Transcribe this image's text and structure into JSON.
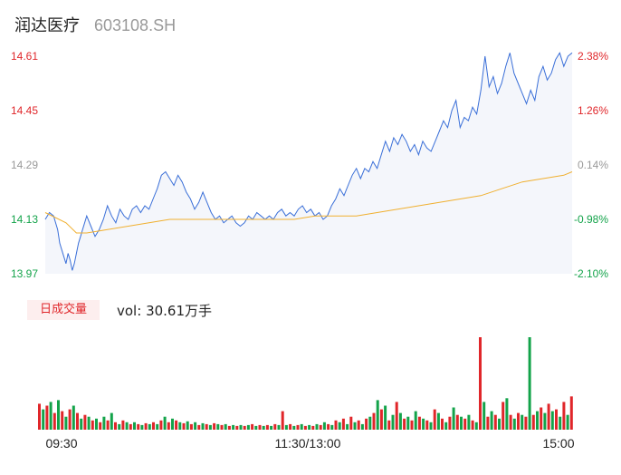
{
  "header": {
    "name": "润达医疗",
    "code": "603108.SH"
  },
  "volume": {
    "badge": "日成交量",
    "label": "vol:",
    "value": "30.61万手"
  },
  "colors": {
    "price": "#3a6fd8",
    "avg": "#f0b030",
    "up": "#e0262a",
    "down": "#13a34a",
    "fill": "#f4f6fb",
    "neutral": "#999999"
  },
  "chart_data": {
    "type": "line",
    "y_left_ticks": [
      "14.61",
      "14.45",
      "14.29",
      "14.13",
      "13.97"
    ],
    "y_right_ticks": [
      "2.38%",
      "1.26%",
      "0.14%",
      "-0.98%",
      "-2.10%"
    ],
    "ylim": [
      13.97,
      14.61
    ],
    "x_ticks": [
      "09:30",
      "11:30/13:00",
      "15:00"
    ],
    "price_series": [
      [
        0,
        14.13
      ],
      [
        2,
        14.15
      ],
      [
        4,
        14.14
      ],
      [
        6,
        14.1
      ],
      [
        7,
        14.06
      ],
      [
        9,
        14.02
      ],
      [
        10,
        14.0
      ],
      [
        11,
        14.03
      ],
      [
        12,
        14.01
      ],
      [
        13,
        13.98
      ],
      [
        14,
        14.0
      ],
      [
        15,
        14.03
      ],
      [
        16,
        14.06
      ],
      [
        17,
        14.08
      ],
      [
        18,
        14.1
      ],
      [
        19,
        14.12
      ],
      [
        20,
        14.14
      ],
      [
        22,
        14.11
      ],
      [
        24,
        14.08
      ],
      [
        26,
        14.1
      ],
      [
        28,
        14.13
      ],
      [
        30,
        14.17
      ],
      [
        32,
        14.14
      ],
      [
        34,
        14.12
      ],
      [
        36,
        14.16
      ],
      [
        38,
        14.14
      ],
      [
        40,
        14.13
      ],
      [
        42,
        14.16
      ],
      [
        44,
        14.17
      ],
      [
        46,
        14.15
      ],
      [
        48,
        14.17
      ],
      [
        50,
        14.16
      ],
      [
        52,
        14.19
      ],
      [
        54,
        14.22
      ],
      [
        56,
        14.26
      ],
      [
        58,
        14.27
      ],
      [
        60,
        14.25
      ],
      [
        62,
        14.23
      ],
      [
        64,
        14.26
      ],
      [
        66,
        14.24
      ],
      [
        68,
        14.21
      ],
      [
        70,
        14.19
      ],
      [
        72,
        14.16
      ],
      [
        74,
        14.18
      ],
      [
        76,
        14.21
      ],
      [
        78,
        14.18
      ],
      [
        80,
        14.15
      ],
      [
        82,
        14.13
      ],
      [
        84,
        14.14
      ],
      [
        86,
        14.12
      ],
      [
        88,
        14.13
      ],
      [
        90,
        14.14
      ],
      [
        92,
        14.12
      ],
      [
        94,
        14.11
      ],
      [
        96,
        14.12
      ],
      [
        98,
        14.14
      ],
      [
        100,
        14.13
      ],
      [
        102,
        14.15
      ],
      [
        104,
        14.14
      ],
      [
        106,
        14.13
      ],
      [
        108,
        14.14
      ],
      [
        110,
        14.13
      ],
      [
        112,
        14.15
      ],
      [
        114,
        14.16
      ],
      [
        116,
        14.14
      ],
      [
        118,
        14.15
      ],
      [
        120,
        14.14
      ],
      [
        122,
        14.16
      ],
      [
        124,
        14.17
      ],
      [
        126,
        14.15
      ],
      [
        128,
        14.16
      ],
      [
        130,
        14.14
      ],
      [
        132,
        14.15
      ],
      [
        134,
        14.13
      ],
      [
        136,
        14.14
      ],
      [
        138,
        14.17
      ],
      [
        140,
        14.19
      ],
      [
        142,
        14.22
      ],
      [
        144,
        14.2
      ],
      [
        146,
        14.23
      ],
      [
        148,
        14.26
      ],
      [
        150,
        14.28
      ],
      [
        152,
        14.25
      ],
      [
        154,
        14.28
      ],
      [
        156,
        14.27
      ],
      [
        158,
        14.3
      ],
      [
        160,
        14.28
      ],
      [
        162,
        14.32
      ],
      [
        164,
        14.36
      ],
      [
        166,
        14.33
      ],
      [
        168,
        14.37
      ],
      [
        170,
        14.35
      ],
      [
        172,
        14.38
      ],
      [
        174,
        14.36
      ],
      [
        176,
        14.33
      ],
      [
        178,
        14.35
      ],
      [
        180,
        14.32
      ],
      [
        182,
        14.36
      ],
      [
        184,
        14.34
      ],
      [
        186,
        14.33
      ],
      [
        188,
        14.36
      ],
      [
        190,
        14.39
      ],
      [
        192,
        14.42
      ],
      [
        194,
        14.4
      ],
      [
        196,
        14.45
      ],
      [
        198,
        14.48
      ],
      [
        200,
        14.4
      ],
      [
        202,
        14.43
      ],
      [
        204,
        14.42
      ],
      [
        206,
        14.46
      ],
      [
        208,
        14.44
      ],
      [
        210,
        14.51
      ],
      [
        212,
        14.61
      ],
      [
        214,
        14.52
      ],
      [
        216,
        14.55
      ],
      [
        218,
        14.5
      ],
      [
        220,
        14.53
      ],
      [
        222,
        14.58
      ],
      [
        224,
        14.62
      ],
      [
        226,
        14.56
      ],
      [
        228,
        14.53
      ],
      [
        230,
        14.5
      ],
      [
        232,
        14.47
      ],
      [
        234,
        14.51
      ],
      [
        236,
        14.48
      ],
      [
        238,
        14.55
      ],
      [
        240,
        14.58
      ],
      [
        242,
        14.54
      ],
      [
        244,
        14.56
      ],
      [
        246,
        14.6
      ],
      [
        248,
        14.62
      ],
      [
        250,
        14.58
      ],
      [
        252,
        14.61
      ],
      [
        254,
        14.62
      ]
    ],
    "avg_series": [
      [
        0,
        14.15
      ],
      [
        10,
        14.12
      ],
      [
        15,
        14.09
      ],
      [
        20,
        14.09
      ],
      [
        30,
        14.1
      ],
      [
        40,
        14.11
      ],
      [
        50,
        14.12
      ],
      [
        60,
        14.13
      ],
      [
        70,
        14.13
      ],
      [
        80,
        14.13
      ],
      [
        90,
        14.13
      ],
      [
        100,
        14.13
      ],
      [
        110,
        14.13
      ],
      [
        120,
        14.13
      ],
      [
        130,
        14.14
      ],
      [
        140,
        14.14
      ],
      [
        150,
        14.14
      ],
      [
        160,
        14.15
      ],
      [
        170,
        14.16
      ],
      [
        180,
        14.17
      ],
      [
        190,
        14.18
      ],
      [
        200,
        14.19
      ],
      [
        210,
        14.2
      ],
      [
        220,
        14.22
      ],
      [
        230,
        14.24
      ],
      [
        240,
        14.25
      ],
      [
        250,
        14.26
      ],
      [
        254,
        14.27
      ]
    ],
    "volume_bars": [
      [
        0,
        28,
        "up"
      ],
      [
        1,
        22,
        "down"
      ],
      [
        2,
        26,
        "up"
      ],
      [
        3,
        30,
        "down"
      ],
      [
        4,
        18,
        "up"
      ],
      [
        5,
        32,
        "down"
      ],
      [
        6,
        20,
        "up"
      ],
      [
        7,
        14,
        "down"
      ],
      [
        8,
        22,
        "up"
      ],
      [
        9,
        26,
        "down"
      ],
      [
        10,
        18,
        "up"
      ],
      [
        11,
        12,
        "down"
      ],
      [
        12,
        16,
        "up"
      ],
      [
        13,
        14,
        "down"
      ],
      [
        14,
        10,
        "up"
      ],
      [
        15,
        12,
        "down"
      ],
      [
        16,
        8,
        "up"
      ],
      [
        17,
        14,
        "down"
      ],
      [
        18,
        10,
        "up"
      ],
      [
        19,
        18,
        "down"
      ],
      [
        20,
        8,
        "up"
      ],
      [
        21,
        6,
        "down"
      ],
      [
        22,
        10,
        "up"
      ],
      [
        23,
        8,
        "down"
      ],
      [
        24,
        6,
        "up"
      ],
      [
        25,
        8,
        "down"
      ],
      [
        26,
        6,
        "up"
      ],
      [
        27,
        5,
        "down"
      ],
      [
        28,
        7,
        "up"
      ],
      [
        29,
        6,
        "down"
      ],
      [
        30,
        8,
        "up"
      ],
      [
        31,
        6,
        "down"
      ],
      [
        32,
        10,
        "up"
      ],
      [
        33,
        14,
        "down"
      ],
      [
        34,
        8,
        "up"
      ],
      [
        35,
        12,
        "down"
      ],
      [
        36,
        10,
        "up"
      ],
      [
        37,
        8,
        "down"
      ],
      [
        38,
        7,
        "up"
      ],
      [
        39,
        9,
        "down"
      ],
      [
        40,
        6,
        "up"
      ],
      [
        41,
        8,
        "down"
      ],
      [
        42,
        5,
        "up"
      ],
      [
        43,
        7,
        "down"
      ],
      [
        44,
        6,
        "up"
      ],
      [
        45,
        5,
        "down"
      ],
      [
        46,
        7,
        "up"
      ],
      [
        47,
        6,
        "down"
      ],
      [
        48,
        5,
        "up"
      ],
      [
        49,
        6,
        "down"
      ],
      [
        50,
        4,
        "up"
      ],
      [
        51,
        5,
        "down"
      ],
      [
        52,
        4,
        "up"
      ],
      [
        53,
        5,
        "down"
      ],
      [
        54,
        4,
        "up"
      ],
      [
        55,
        5,
        "down"
      ],
      [
        56,
        6,
        "up"
      ],
      [
        57,
        4,
        "down"
      ],
      [
        58,
        5,
        "up"
      ],
      [
        59,
        4,
        "down"
      ],
      [
        60,
        5,
        "up"
      ],
      [
        61,
        4,
        "down"
      ],
      [
        62,
        6,
        "up"
      ],
      [
        63,
        5,
        "down"
      ],
      [
        64,
        20,
        "up"
      ],
      [
        65,
        5,
        "down"
      ],
      [
        66,
        6,
        "up"
      ],
      [
        67,
        4,
        "down"
      ],
      [
        68,
        5,
        "up"
      ],
      [
        69,
        6,
        "down"
      ],
      [
        70,
        4,
        "up"
      ],
      [
        71,
        5,
        "down"
      ],
      [
        72,
        4,
        "up"
      ],
      [
        73,
        6,
        "down"
      ],
      [
        74,
        5,
        "up"
      ],
      [
        75,
        8,
        "down"
      ],
      [
        76,
        6,
        "up"
      ],
      [
        77,
        5,
        "down"
      ],
      [
        78,
        10,
        "up"
      ],
      [
        79,
        8,
        "down"
      ],
      [
        80,
        12,
        "up"
      ],
      [
        81,
        6,
        "down"
      ],
      [
        82,
        14,
        "up"
      ],
      [
        83,
        8,
        "down"
      ],
      [
        84,
        10,
        "up"
      ],
      [
        85,
        6,
        "down"
      ],
      [
        86,
        12,
        "up"
      ],
      [
        87,
        14,
        "down"
      ],
      [
        88,
        18,
        "up"
      ],
      [
        89,
        32,
        "down"
      ],
      [
        90,
        22,
        "up"
      ],
      [
        91,
        26,
        "down"
      ],
      [
        92,
        10,
        "up"
      ],
      [
        93,
        16,
        "down"
      ],
      [
        94,
        30,
        "up"
      ],
      [
        95,
        18,
        "down"
      ],
      [
        96,
        12,
        "up"
      ],
      [
        97,
        14,
        "down"
      ],
      [
        98,
        10,
        "up"
      ],
      [
        99,
        20,
        "down"
      ],
      [
        100,
        14,
        "up"
      ],
      [
        101,
        12,
        "down"
      ],
      [
        102,
        10,
        "up"
      ],
      [
        103,
        8,
        "down"
      ],
      [
        104,
        22,
        "up"
      ],
      [
        105,
        18,
        "down"
      ],
      [
        106,
        12,
        "up"
      ],
      [
        107,
        8,
        "down"
      ],
      [
        108,
        14,
        "up"
      ],
      [
        109,
        24,
        "down"
      ],
      [
        110,
        16,
        "up"
      ],
      [
        111,
        14,
        "down"
      ],
      [
        112,
        12,
        "up"
      ],
      [
        113,
        16,
        "down"
      ],
      [
        114,
        10,
        "up"
      ],
      [
        115,
        8,
        "down"
      ],
      [
        116,
        100,
        "up"
      ],
      [
        117,
        30,
        "down"
      ],
      [
        118,
        14,
        "up"
      ],
      [
        119,
        20,
        "down"
      ],
      [
        120,
        16,
        "up"
      ],
      [
        121,
        12,
        "down"
      ],
      [
        122,
        30,
        "up"
      ],
      [
        123,
        34,
        "down"
      ],
      [
        124,
        16,
        "up"
      ],
      [
        125,
        12,
        "down"
      ],
      [
        126,
        18,
        "up"
      ],
      [
        127,
        16,
        "down"
      ],
      [
        128,
        14,
        "up"
      ],
      [
        129,
        100,
        "down"
      ],
      [
        130,
        16,
        "up"
      ],
      [
        131,
        20,
        "down"
      ],
      [
        132,
        24,
        "up"
      ],
      [
        133,
        18,
        "down"
      ],
      [
        134,
        28,
        "up"
      ],
      [
        135,
        20,
        "down"
      ],
      [
        136,
        22,
        "up"
      ],
      [
        137,
        14,
        "down"
      ],
      [
        138,
        30,
        "up"
      ],
      [
        139,
        16,
        "down"
      ],
      [
        140,
        36,
        "up"
      ]
    ]
  }
}
